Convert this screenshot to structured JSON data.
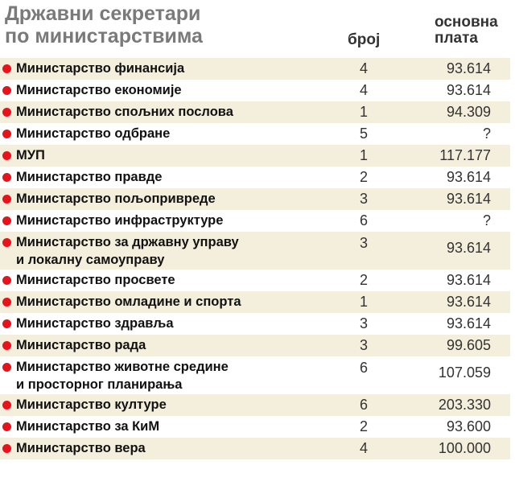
{
  "header": {
    "title": [
      "Државни секретари",
      "по министарствима"
    ],
    "columns": {
      "count": "број",
      "salary": [
        "основна",
        "плата"
      ]
    }
  },
  "table": {
    "rows": [
      {
        "name": [
          "Министарство финансија"
        ],
        "count": 4,
        "salary": "93.614"
      },
      {
        "name": [
          "Министарство економије"
        ],
        "count": 4,
        "salary": "93.614"
      },
      {
        "name": [
          "Министарство спољних послова"
        ],
        "count": 1,
        "salary": "94.309"
      },
      {
        "name": [
          "Министарство одбране"
        ],
        "count": 5,
        "salary": "?"
      },
      {
        "name": [
          "МУП"
        ],
        "count": 1,
        "salary": "117.177"
      },
      {
        "name": [
          "Министарство правде"
        ],
        "count": 2,
        "salary": "93.614"
      },
      {
        "name": [
          "Министарство пољопривреде"
        ],
        "count": 3,
        "salary": "93.614"
      },
      {
        "name": [
          "Министарство инфраструктуре"
        ],
        "count": 6,
        "salary": "?"
      },
      {
        "name": [
          "Министарство за државну управу",
          "и локалну самоуправу"
        ],
        "count": 3,
        "salary": "93.614"
      },
      {
        "name": [
          "Министарство просвете"
        ],
        "count": 2,
        "salary": "93.614"
      },
      {
        "name": [
          "Министарство омладине и спорта"
        ],
        "count": 1,
        "salary": "93.614"
      },
      {
        "name": [
          "Министарство здравља"
        ],
        "count": 3,
        "salary": "93.614"
      },
      {
        "name": [
          "Министарство рада"
        ],
        "count": 3,
        "salary": "99.605"
      },
      {
        "name": [
          "Министарство животне средине",
          "и просторног планирања"
        ],
        "count": 6,
        "salary": "107.059"
      },
      {
        "name": [
          "Министарство културе"
        ],
        "count": 6,
        "salary": "203.330"
      },
      {
        "name": [
          "Министарство за КиМ"
        ],
        "count": 2,
        "salary": "93.600"
      },
      {
        "name": [
          "Министарство вера"
        ],
        "count": 4,
        "salary": "100.000"
      }
    ]
  }
}
